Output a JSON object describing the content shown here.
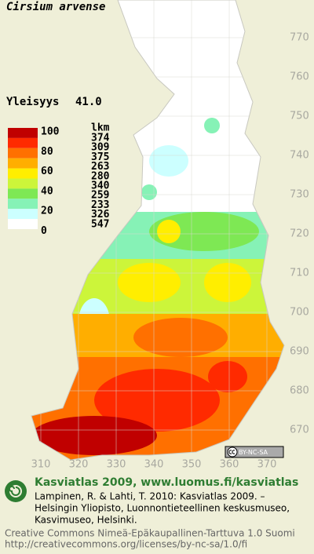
{
  "title": "Cirsium arvense",
  "frequency": {
    "label": "Yleisyys",
    "value": {
      "value": 41,
      "label": "41.0"
    }
  },
  "legend": {
    "levels": [
      100,
      80,
      60,
      40,
      20,
      0
    ],
    "count_header": "lkm",
    "classes": [
      {
        "color": "#c00000",
        "count": 374
      },
      {
        "color": "#ff2a00",
        "count": 309
      },
      {
        "color": "#ff7000",
        "count": 375
      },
      {
        "color": "#ffae00",
        "count": 263
      },
      {
        "color": "#ffee00",
        "count": 280
      },
      {
        "color": "#ccf53a",
        "count": 340
      },
      {
        "color": "#7ee854",
        "count": 259
      },
      {
        "color": "#86f2b6",
        "count": 233
      },
      {
        "color": "#ccffff",
        "count": 326
      },
      {
        "color": "#ffffff",
        "count": 547
      }
    ]
  },
  "map": {
    "xlim": [
      305,
      375
    ],
    "ylim": [
      660,
      780
    ],
    "xticks": [
      310,
      320,
      330,
      340,
      350,
      360,
      370
    ],
    "yticks": [
      770,
      760,
      750,
      740,
      730,
      720,
      710,
      700,
      690,
      680,
      670
    ]
  },
  "badge": "BY-NC-SA",
  "footer": {
    "heading": "Kasviatlas 2009, www.luomus.fi/kasviatlas",
    "citation": [
      "Lampinen, R. & Lahti, T. 2010: Kasviatlas 2009. –",
      "Helsingin Yliopisto, Luonnontieteellinen keskusmuseo,",
      "Kasvimuseo, Helsinki."
    ],
    "license": "Creative Commons Nimeä-Epäkaupallinen-Tarttuva 1.0 Suomi",
    "license_url": "http://creativecommons.org/licenses/by-nc-sa/1.0/fi"
  }
}
